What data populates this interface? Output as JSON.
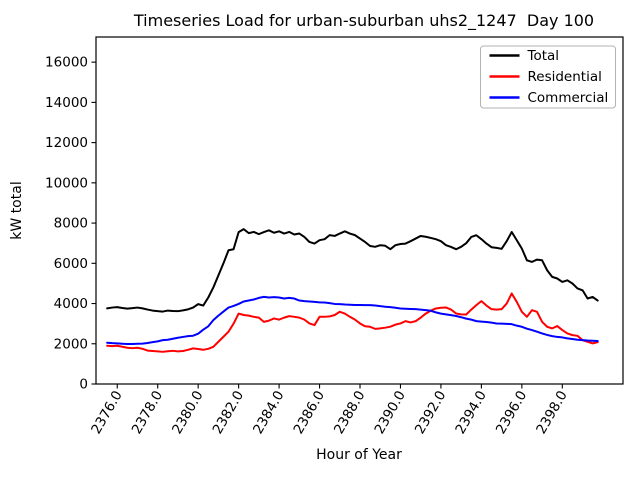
{
  "title": "Timeseries Load for urban-suburban uhs2_1247  Day 100",
  "axes": {
    "xlabel": "Hour of Year",
    "ylabel": "kW total",
    "x_tick_labels": [
      "2376.0",
      "2378.0",
      "2380.0",
      "2382.0",
      "2384.0",
      "2386.0",
      "2388.0",
      "2390.0",
      "2392.0",
      "2394.0",
      "2396.0",
      "2398.0"
    ],
    "y_tick_labels": [
      "0",
      "2000",
      "4000",
      "6000",
      "8000",
      "10000",
      "12000",
      "14000",
      "16000"
    ]
  },
  "legend": {
    "position": "upper right",
    "entries": [
      "Total",
      "Residential",
      "Commercial"
    ]
  },
  "colors": {
    "total": "#000000",
    "residential": "#ff0000",
    "commercial": "#0000ff",
    "spine": "#000000",
    "legend_border": "#b3b3b3",
    "background": "#ffffff"
  },
  "chart_data": {
    "type": "line",
    "title": "Timeseries Load for urban-suburban uhs2_1247  Day 100",
    "xlabel": "Hour of Year",
    "ylabel": "kW total",
    "xlim": [
      2374.95,
      2401.0
    ],
    "ylim": [
      0,
      17250
    ],
    "grid": false,
    "legend_position": "upper right",
    "x_tick_values": [
      2376,
      2378,
      2380,
      2382,
      2384,
      2386,
      2388,
      2390,
      2392,
      2394,
      2396,
      2398
    ],
    "y_tick_values": [
      0,
      2000,
      4000,
      6000,
      8000,
      10000,
      12000,
      14000,
      16000
    ],
    "x_start": 2375.5,
    "x_step": 0.25,
    "series": [
      {
        "name": "Total",
        "color": "#000000",
        "values": [
          3760,
          3800,
          3820,
          3780,
          3750,
          3770,
          3800,
          3760,
          3700,
          3650,
          3620,
          3600,
          3650,
          3630,
          3620,
          3660,
          3710,
          3800,
          3970,
          3900,
          4300,
          4800,
          5400,
          6000,
          6650,
          6700,
          7550,
          7700,
          7500,
          7560,
          7450,
          7555,
          7640,
          7520,
          7590,
          7480,
          7560,
          7430,
          7480,
          7310,
          7060,
          6980,
          7150,
          7200,
          7400,
          7360,
          7480,
          7590,
          7480,
          7400,
          7230,
          7060,
          6860,
          6820,
          6900,
          6870,
          6700,
          6900,
          6960,
          6980,
          7100,
          7230,
          7360,
          7320,
          7260,
          7200,
          7100,
          6900,
          6815,
          6700,
          6820,
          7000,
          7310,
          7395,
          7200,
          6980,
          6800,
          6765,
          6720,
          7100,
          7555,
          7145,
          6730,
          6150,
          6070,
          6185,
          6150,
          5655,
          5325,
          5245,
          5075,
          5155,
          4995,
          4750,
          4660,
          4250,
          4330,
          4150
        ]
      },
      {
        "name": "Residential",
        "color": "#ff0000",
        "values": [
          1900,
          1880,
          1900,
          1850,
          1800,
          1780,
          1800,
          1750,
          1660,
          1640,
          1620,
          1600,
          1630,
          1650,
          1620,
          1640,
          1700,
          1770,
          1740,
          1700,
          1750,
          1850,
          2100,
          2350,
          2600,
          3000,
          3500,
          3430,
          3400,
          3340,
          3300,
          3090,
          3150,
          3260,
          3200,
          3300,
          3375,
          3340,
          3300,
          3200,
          3010,
          2930,
          3340,
          3340,
          3360,
          3430,
          3590,
          3500,
          3340,
          3200,
          3010,
          2870,
          2845,
          2740,
          2765,
          2800,
          2850,
          2950,
          3010,
          3125,
          3060,
          3125,
          3300,
          3500,
          3650,
          3755,
          3790,
          3805,
          3700,
          3505,
          3460,
          3455,
          3700,
          3920,
          4120,
          3900,
          3720,
          3700,
          3720,
          4000,
          4500,
          4080,
          3590,
          3340,
          3670,
          3590,
          3090,
          2845,
          2765,
          2880,
          2680,
          2515,
          2430,
          2395,
          2180,
          2100,
          2020,
          2080
        ]
      },
      {
        "name": "Commercial",
        "color": "#0000ff",
        "values": [
          2050,
          2030,
          2020,
          2000,
          1990,
          1990,
          2000,
          2010,
          2040,
          2080,
          2120,
          2180,
          2200,
          2250,
          2300,
          2340,
          2380,
          2400,
          2500,
          2700,
          2870,
          3175,
          3400,
          3600,
          3800,
          3880,
          3980,
          4100,
          4150,
          4200,
          4280,
          4330,
          4300,
          4320,
          4300,
          4250,
          4280,
          4250,
          4150,
          4120,
          4100,
          4080,
          4060,
          4050,
          4020,
          3980,
          3970,
          3950,
          3940,
          3930,
          3925,
          3920,
          3920,
          3900,
          3870,
          3840,
          3820,
          3790,
          3755,
          3740,
          3730,
          3720,
          3700,
          3670,
          3640,
          3560,
          3500,
          3460,
          3425,
          3380,
          3320,
          3250,
          3200,
          3125,
          3100,
          3080,
          3050,
          3010,
          3000,
          2990,
          2975,
          2900,
          2845,
          2750,
          2680,
          2600,
          2515,
          2440,
          2380,
          2340,
          2315,
          2270,
          2235,
          2200,
          2180,
          2160,
          2150,
          2135
        ]
      }
    ]
  }
}
